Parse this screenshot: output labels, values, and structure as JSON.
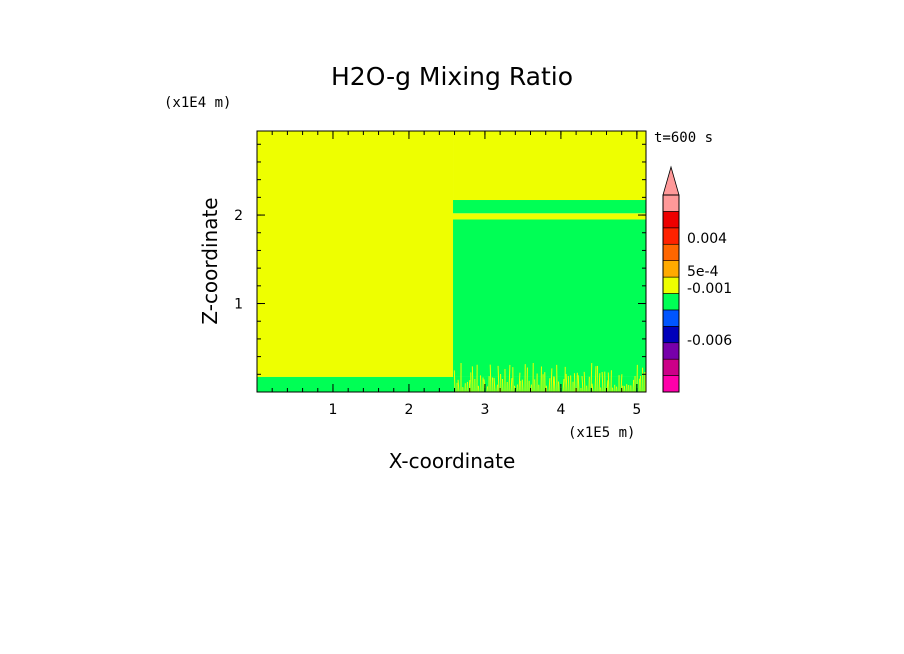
{
  "chart_data": {
    "type": "heatmap",
    "title": "H2O-g Mixing Ratio",
    "xlabel": "X-coordinate",
    "ylabel": "Z-coordinate",
    "x_scale_label": "(x1E5 m)",
    "y_scale_label": "(x1E4 m)",
    "time_label": "t=600 s",
    "xlim": [
      0,
      5.12
    ],
    "ylim": [
      0,
      2.95
    ],
    "x_ticks": [
      "1",
      "2",
      "3",
      "4",
      "5"
    ],
    "y_ticks": [
      "1",
      "2"
    ],
    "regions": [
      {
        "x": [
          0,
          2.58
        ],
        "z": [
          0.17,
          2.95
        ],
        "color": "#eeff00"
      },
      {
        "x": [
          2.58,
          5.12
        ],
        "z": [
          0.17,
          1.95
        ],
        "color": "#00ff55"
      },
      {
        "x": [
          2.58,
          5.12
        ],
        "z": [
          1.95,
          2.02
        ],
        "color": "#eeff00"
      },
      {
        "x": [
          2.58,
          5.12
        ],
        "z": [
          2.02,
          2.17
        ],
        "color": "#00ff55"
      },
      {
        "x": [
          2.58,
          5.12
        ],
        "z": [
          2.17,
          2.95
        ],
        "color": "#eeff00"
      },
      {
        "x": [
          0,
          5.12
        ],
        "z": [
          0,
          0.17
        ],
        "color": "#00ff55"
      }
    ],
    "colorbar": {
      "levels_bottom_to_top": [
        "#ff00aa",
        "#cc0088",
        "#7700aa",
        "#0000bb",
        "#0055ff",
        "#00ff55",
        "#eeff00",
        "#ffaa00",
        "#ff6600",
        "#ff2200",
        "#ee0000",
        "#ff9999"
      ],
      "labels": [
        "0.004",
        "5e-4",
        "-0.001",
        "-0.006"
      ],
      "extend_top_color": "#ff9999"
    }
  }
}
